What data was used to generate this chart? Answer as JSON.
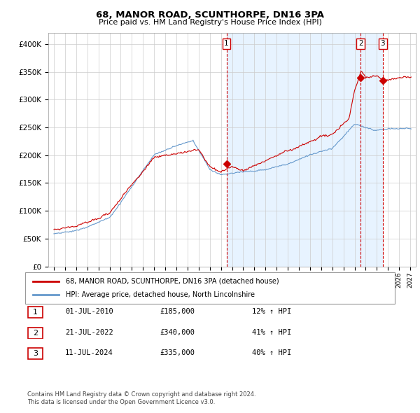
{
  "title": "68, MANOR ROAD, SCUNTHORPE, DN16 3PA",
  "subtitle": "Price paid vs. HM Land Registry's House Price Index (HPI)",
  "red_label": "68, MANOR ROAD, SCUNTHORPE, DN16 3PA (detached house)",
  "blue_label": "HPI: Average price, detached house, North Lincolnshire",
  "sale_points": [
    {
      "date_num": 2010.5,
      "value": 185000,
      "label": "1"
    },
    {
      "date_num": 2022.55,
      "value": 340000,
      "label": "2"
    },
    {
      "date_num": 2024.53,
      "value": 335000,
      "label": "3"
    }
  ],
  "table_rows": [
    {
      "num": "1",
      "date": "01-JUL-2010",
      "price": "£185,000",
      "change": "12% ↑ HPI"
    },
    {
      "num": "2",
      "date": "21-JUL-2022",
      "price": "£340,000",
      "change": "41% ↑ HPI"
    },
    {
      "num": "3",
      "date": "11-JUL-2024",
      "price": "£335,000",
      "change": "40% ↑ HPI"
    }
  ],
  "footnote1": "Contains HM Land Registry data © Crown copyright and database right 2024.",
  "footnote2": "This data is licensed under the Open Government Licence v3.0.",
  "ylim": [
    0,
    420000
  ],
  "xlim_start": 1994.5,
  "xlim_end": 2027.5,
  "red_color": "#cc0000",
  "blue_color": "#6699cc",
  "shade_color": "#ddeeff",
  "background_color": "#ffffff",
  "grid_color": "#cccccc"
}
